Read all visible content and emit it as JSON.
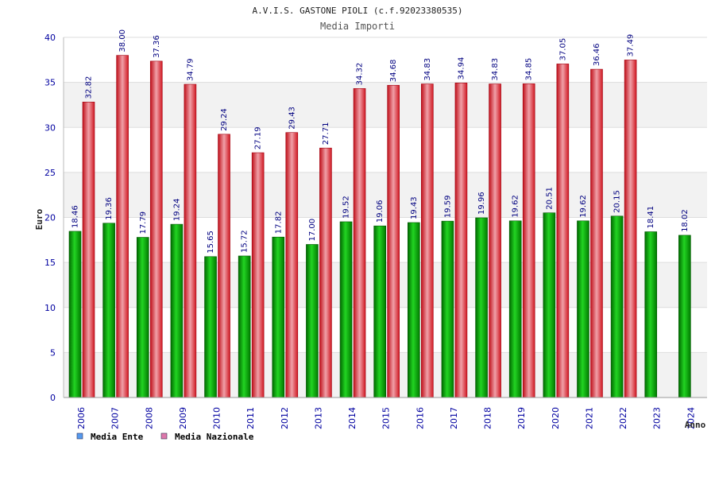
{
  "chart_data": {
    "type": "bar",
    "title": "A.V.I.S. GASTONE PIOLI (c.f.92023380535)",
    "subtitle": "Media Importi",
    "ylabel": "Euro",
    "xlabel": "Anno",
    "ylim": [
      0,
      40
    ],
    "yticks": [
      0,
      5,
      10,
      15,
      20,
      25,
      30,
      35,
      40
    ],
    "categories": [
      "2006",
      "2007",
      "2008",
      "2009",
      "2010",
      "2011",
      "2012",
      "2013",
      "2014",
      "2015",
      "2016",
      "2017",
      "2018",
      "2019",
      "2020",
      "2021",
      "2022",
      "2023",
      "2024"
    ],
    "series": [
      {
        "name": "Media Ente",
        "values": [
          18.46,
          19.36,
          17.79,
          19.24,
          15.65,
          15.72,
          17.82,
          17.0,
          19.52,
          19.06,
          19.43,
          19.59,
          19.96,
          19.62,
          20.51,
          19.62,
          20.15,
          18.41,
          18.02
        ],
        "labels": [
          "18.46",
          "19.36",
          "17.79",
          "19.24",
          "15.65",
          "15.72",
          "17.82",
          "17.00",
          "19.52",
          "19.06",
          "19.43",
          "19.59",
          "19.96",
          "19.62",
          "20.51",
          "19.62",
          "20.15",
          "18.41",
          "18.02"
        ],
        "color": "#00a000",
        "legend_color": "#5599ee"
      },
      {
        "name": "Media Nazionale",
        "values": [
          32.82,
          38.0,
          37.36,
          34.79,
          29.24,
          27.19,
          29.43,
          27.71,
          34.32,
          34.68,
          34.83,
          34.94,
          34.83,
          34.85,
          37.05,
          36.46,
          37.49,
          null,
          null
        ],
        "labels": [
          "32.82",
          "38.00",
          "37.36",
          "34.79",
          "29.24",
          "27.19",
          "29.43",
          "27.71",
          "34.32",
          "34.68",
          "34.83",
          "34.94",
          "34.83",
          "34.85",
          "37.05",
          "36.46",
          "37.49",
          "",
          ""
        ],
        "color": "#e8202a",
        "legend_color": "#dd77aa"
      }
    ],
    "grid": true,
    "legend": "bottom-left"
  }
}
